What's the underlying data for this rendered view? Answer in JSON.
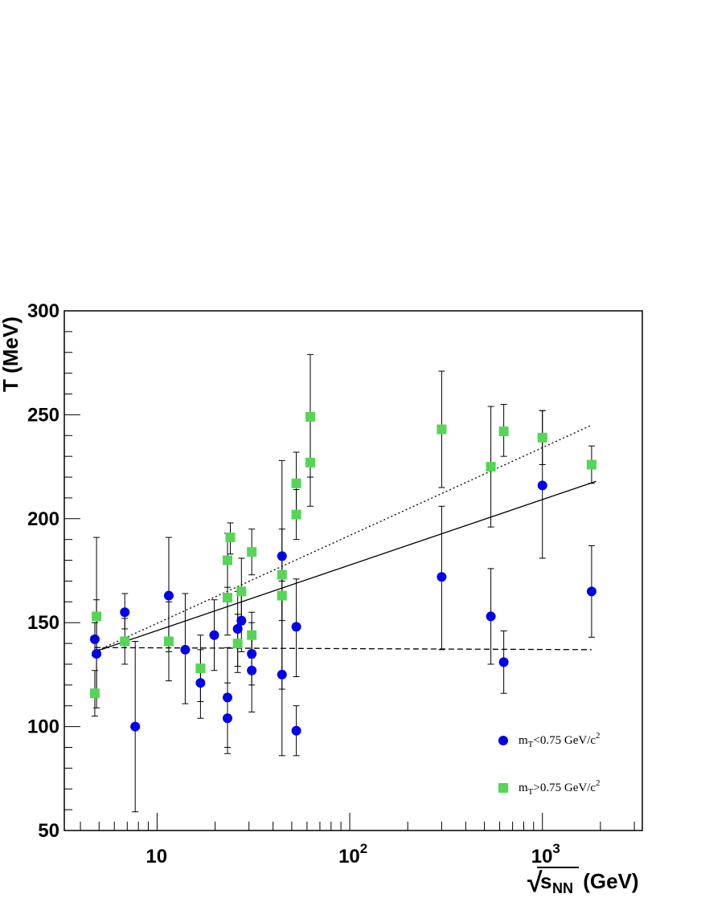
{
  "chart_data": {
    "type": "scatter",
    "title": "",
    "xlabel": {
      "radical": "√",
      "base": "s",
      "sub": "NN",
      "rest": " (GeV)"
    },
    "ylabel": "T (MeV)",
    "xscale": "log",
    "xlim": [
      3.3,
      3300
    ],
    "ylim": [
      50,
      300
    ],
    "grid": false,
    "legend_position": "bottom-right",
    "x_tick_labels": [
      {
        "value": 10,
        "base": "10",
        "exp": ""
      },
      {
        "value": 100,
        "base": "10",
        "exp": "2"
      },
      {
        "value": 1000,
        "base": "10",
        "exp": "3"
      }
    ],
    "y_tick_labels": [
      50,
      100,
      150,
      200,
      250,
      300
    ],
    "series": [
      {
        "name": "m_T<0.75 GeV/c^2",
        "legend_parts": {
          "m": "m",
          "sub": "T",
          "mid": "<0.75 GeV/c",
          "sup": "2"
        },
        "marker": "circle",
        "color": "#0000ee",
        "points": [
          {
            "x": 4.75,
            "y": 142,
            "lo": 134,
            "hi": 150
          },
          {
            "x": 4.85,
            "y": 135,
            "lo": 109,
            "hi": 161
          },
          {
            "x": 6.8,
            "y": 155,
            "lo": 147,
            "hi": 164
          },
          {
            "x": 7.7,
            "y": 100,
            "lo": 59,
            "hi": 141
          },
          {
            "x": 11.5,
            "y": 163,
            "lo": 136,
            "hi": 191
          },
          {
            "x": 14,
            "y": 137,
            "lo": 111,
            "hi": 164
          },
          {
            "x": 16.8,
            "y": 121,
            "lo": 104,
            "hi": 137
          },
          {
            "x": 19.8,
            "y": 144,
            "lo": 127,
            "hi": 161
          },
          {
            "x": 23.2,
            "y": 114,
            "lo": 90,
            "hi": 138
          },
          {
            "x": 23.2,
            "y": 104,
            "lo": 87,
            "hi": 121
          },
          {
            "x": 26.2,
            "y": 147,
            "lo": 129,
            "hi": 165
          },
          {
            "x": 27.4,
            "y": 151,
            "lo": 136,
            "hi": 166
          },
          {
            "x": 31,
            "y": 135,
            "lo": 120,
            "hi": 150
          },
          {
            "x": 31,
            "y": 127,
            "lo": 107,
            "hi": 146
          },
          {
            "x": 44.5,
            "y": 182,
            "lo": 170,
            "hi": 195
          },
          {
            "x": 44.5,
            "y": 125,
            "lo": 86,
            "hi": 163
          },
          {
            "x": 52.8,
            "y": 148,
            "lo": 124,
            "hi": 171
          },
          {
            "x": 52.8,
            "y": 98,
            "lo": 86,
            "hi": 110
          },
          {
            "x": 300,
            "y": 172,
            "lo": 137,
            "hi": 206
          },
          {
            "x": 540,
            "y": 153,
            "lo": 130,
            "hi": 176
          },
          {
            "x": 630,
            "y": 131,
            "lo": 116,
            "hi": 146
          },
          {
            "x": 1000,
            "y": 216,
            "lo": 181,
            "hi": 252
          },
          {
            "x": 1800,
            "y": 165,
            "lo": 143,
            "hi": 187
          }
        ]
      },
      {
        "name": "m_T>0.75 GeV/c^2",
        "legend_parts": {
          "m": "m",
          "sub": "T",
          "mid": ">0.75 GeV/c",
          "sup": "2"
        },
        "marker": "square",
        "color": "#55d655",
        "points": [
          {
            "x": 4.75,
            "y": 116,
            "lo": 105,
            "hi": 127
          },
          {
            "x": 4.85,
            "y": 153,
            "lo": 115,
            "hi": 191
          },
          {
            "x": 6.8,
            "y": 141,
            "lo": 130,
            "hi": 152
          },
          {
            "x": 11.5,
            "y": 141,
            "lo": 122,
            "hi": 160
          },
          {
            "x": 16.8,
            "y": 128,
            "lo": 112,
            "hi": 144
          },
          {
            "x": 23.2,
            "y": 162,
            "lo": 144,
            "hi": 180
          },
          {
            "x": 23.2,
            "y": 180,
            "lo": 167,
            "hi": 193
          },
          {
            "x": 24,
            "y": 191,
            "lo": 183,
            "hi": 198
          },
          {
            "x": 26.2,
            "y": 140,
            "lo": 126,
            "hi": 154
          },
          {
            "x": 27.4,
            "y": 165,
            "lo": 149,
            "hi": 181
          },
          {
            "x": 31,
            "y": 184,
            "lo": 173,
            "hi": 195
          },
          {
            "x": 31,
            "y": 144,
            "lo": 133,
            "hi": 155
          },
          {
            "x": 44.5,
            "y": 173,
            "lo": 118,
            "hi": 228
          },
          {
            "x": 44.5,
            "y": 163,
            "lo": 151,
            "hi": 175
          },
          {
            "x": 52.8,
            "y": 217,
            "lo": 202,
            "hi": 232
          },
          {
            "x": 52.8,
            "y": 202,
            "lo": 190,
            "hi": 214
          },
          {
            "x": 62.4,
            "y": 249,
            "lo": 220,
            "hi": 279
          },
          {
            "x": 62.4,
            "y": 227,
            "lo": 206,
            "hi": 249
          },
          {
            "x": 300,
            "y": 243,
            "lo": 215,
            "hi": 271
          },
          {
            "x": 540,
            "y": 225,
            "lo": 196,
            "hi": 254
          },
          {
            "x": 630,
            "y": 242,
            "lo": 230,
            "hi": 255
          },
          {
            "x": 1000,
            "y": 239,
            "lo": 226,
            "hi": 252
          },
          {
            "x": 1800,
            "y": 226,
            "lo": 217,
            "hi": 235
          }
        ]
      }
    ],
    "fit_lines": [
      {
        "style": "dotted",
        "x": [
          4.75,
          1800
        ],
        "y": [
          136,
          245
        ]
      },
      {
        "style": "solid",
        "x": [
          4.75,
          1900
        ],
        "y": [
          136,
          218
        ]
      },
      {
        "style": "dashed",
        "x": [
          4.75,
          1800
        ],
        "y": [
          138,
          137
        ]
      }
    ]
  }
}
